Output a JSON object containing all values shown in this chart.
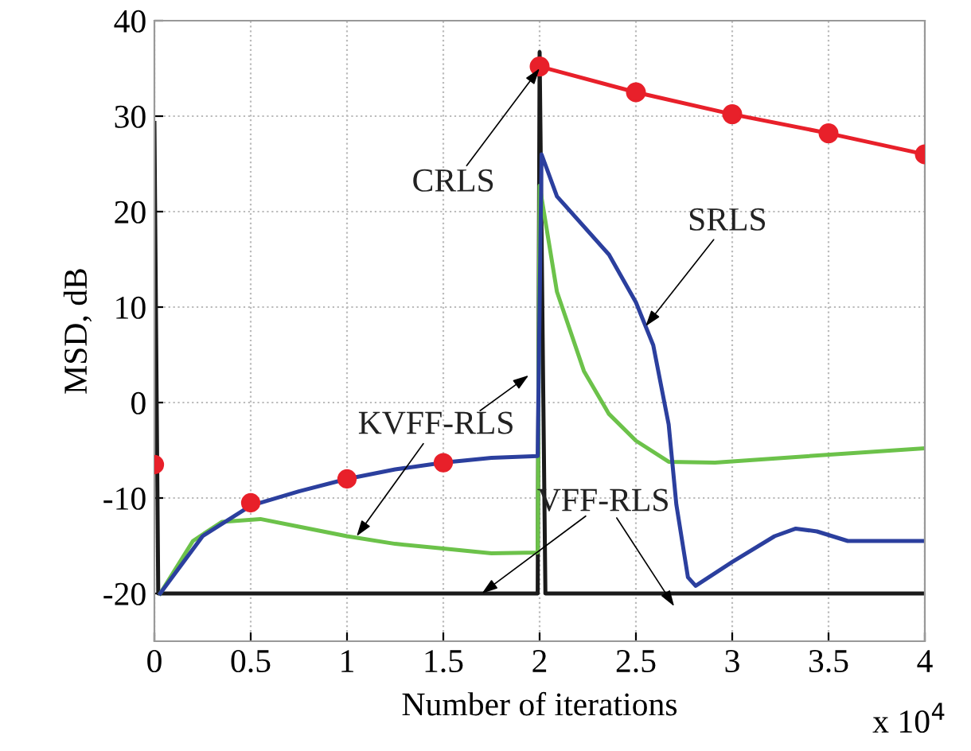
{
  "chart_data": {
    "type": "line",
    "xlabel": "Number of iterations",
    "ylabel": "MSD, dB",
    "xlim": [
      0,
      4
    ],
    "ylim": [
      -25,
      40
    ],
    "xticks": [
      0,
      0.5,
      1,
      1.5,
      2,
      2.5,
      3,
      3.5,
      4
    ],
    "yticks": [
      -20,
      -10,
      0,
      10,
      20,
      30,
      40
    ],
    "grid": true,
    "line_style": "solid",
    "marker": "none",
    "series": [
      {
        "color": "#1a1a1a",
        "x": [
          0,
          0.02,
          0.5,
          1,
          1.5,
          1.99,
          2.0,
          2.03,
          2.5,
          3,
          3.5,
          4
        ],
        "values": [
          29.3,
          -20,
          -20,
          -20,
          -20,
          -20,
          36.7,
          -20,
          -20,
          -20,
          -20,
          -20
        ]
      },
      {
        "color": "#6cc24a",
        "x": [
          0.03,
          0.2,
          0.35,
          0.55,
          0.75,
          1,
          1.25,
          1.5,
          1.75,
          1.99,
          2.0,
          2.09,
          2.23,
          2.36,
          2.5,
          2.67,
          2.91,
          3.33,
          4
        ],
        "values": [
          -20,
          -14.5,
          -12.5,
          -12.2,
          -13,
          -14,
          -14.8,
          -15.3,
          -15.8,
          -15.7,
          22.7,
          11.6,
          3.3,
          -1.2,
          -4,
          -6.2,
          -6.3,
          -5.7,
          -4.8
        ]
      },
      {
        "color": "#2b3f9e",
        "x": [
          0.03,
          0.25,
          0.5,
          0.75,
          1,
          1.25,
          1.5,
          1.75,
          1.99,
          2.01,
          2.09,
          2.36,
          2.5,
          2.59,
          2.67,
          2.71,
          2.77,
          2.81,
          3.0,
          3.22,
          3.33,
          3.44,
          3.6,
          4
        ],
        "values": [
          -20,
          -14,
          -10.8,
          -9.3,
          -8,
          -7,
          -6.3,
          -5.8,
          -5.6,
          26,
          21.6,
          15.5,
          10.5,
          6,
          -2.3,
          -10.7,
          -18.3,
          -19.2,
          -16.7,
          -14,
          -13.2,
          -13.5,
          -14.5,
          -14.5
        ]
      },
      {
        "type": "scatter",
        "color": "#e8202a",
        "marker": "circle",
        "x": [
          0,
          0.5,
          1,
          1.5
        ],
        "values": [
          -6.5,
          -10.5,
          -8,
          -6.3
        ]
      },
      {
        "color": "#e8202a",
        "marker": "circle",
        "x": [
          2,
          2.5,
          3,
          3.5,
          4
        ],
        "values": [
          35.2,
          32.5,
          30.2,
          28.2,
          26
        ]
      }
    ],
    "annotations": [
      {
        "text": "CRLS",
        "x": 2.0,
        "y": 35
      },
      {
        "text": "SRLS",
        "x": 2.55,
        "y": 8
      },
      {
        "text": "KVFF-RLS",
        "x": 1.05,
        "y": -14
      },
      {
        "text": "VFF-RLS",
        "x": 1.7,
        "y": -20
      },
      "x 10$^{4}$"
    ]
  }
}
